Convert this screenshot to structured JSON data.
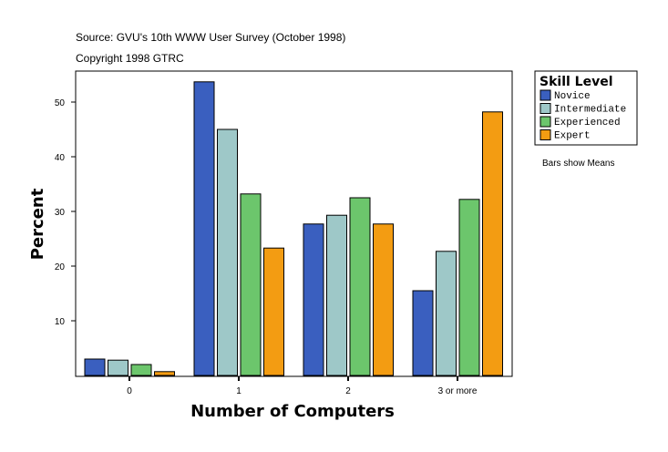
{
  "chart_data": {
    "type": "bar",
    "title": "Source: GVU's 10th WWW User Survey (October 1998)",
    "subtitle": "Copyright 1998 GTRC",
    "xlabel": "Number of Computers",
    "ylabel": "Percent",
    "categories": [
      "0",
      "1",
      "2",
      "3 or more"
    ],
    "yticks": [
      10,
      20,
      30,
      40,
      50
    ],
    "ylim": [
      0,
      55.7
    ],
    "grid": false,
    "legend": {
      "title": "Skill Level",
      "placement": "right"
    },
    "note": "Bars show Means",
    "series": [
      {
        "name": "Novice",
        "color": "#3a5fbf",
        "values": [
          3.0,
          53.7,
          27.7,
          15.5
        ]
      },
      {
        "name": "Intermediate",
        "color": "#9ec8c8",
        "values": [
          2.8,
          45.0,
          29.3,
          22.7
        ]
      },
      {
        "name": "Experienced",
        "color": "#6cc66c",
        "values": [
          2.0,
          33.2,
          32.5,
          32.2
        ]
      },
      {
        "name": "Expert",
        "color": "#f39c12",
        "values": [
          0.7,
          23.3,
          27.7,
          48.2
        ]
      }
    ]
  }
}
